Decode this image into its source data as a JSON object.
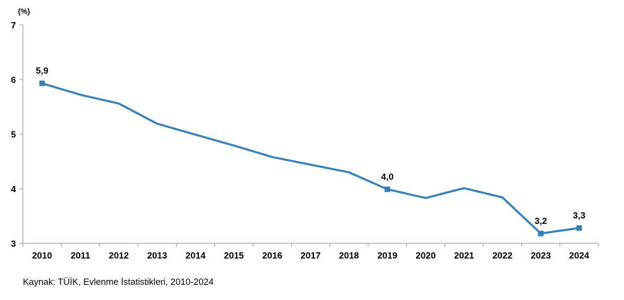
{
  "chart_data": {
    "type": "line",
    "unit_label": "(%)",
    "categories": [
      "2010",
      "2011",
      "2012",
      "2013",
      "2014",
      "2015",
      "2016",
      "2017",
      "2018",
      "2019",
      "2020",
      "2021",
      "2022",
      "2023",
      "2024"
    ],
    "series": [
      {
        "values": [
          5.93,
          5.72,
          5.56,
          5.19,
          4.99,
          4.79,
          4.58,
          4.44,
          4.3,
          3.99,
          3.83,
          4.01,
          3.84,
          3.18,
          3.28
        ],
        "color": "#3a7fb5"
      }
    ],
    "ylim": [
      3,
      7
    ],
    "yticks": [
      "3",
      "4",
      "5",
      "6",
      "7"
    ],
    "marked_points": [
      0,
      9,
      13,
      14
    ],
    "data_labels": [
      {
        "index": 0,
        "text": "5,9"
      },
      {
        "index": 9,
        "text": "4,0"
      },
      {
        "index": 13,
        "text": "3,2"
      },
      {
        "index": 14,
        "text": "3,3"
      }
    ],
    "grid": false,
    "legend": "none"
  },
  "source": "Kaynak: TÜİK, Evlenme İstatistikleri, 2010-2024"
}
